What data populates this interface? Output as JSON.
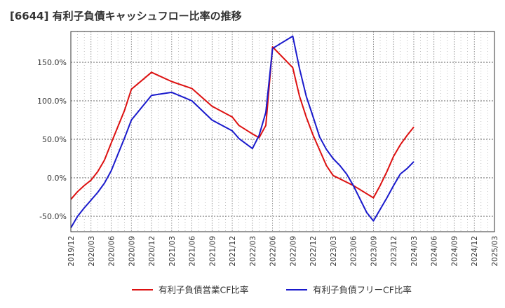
{
  "chart_data": {
    "type": "line",
    "title": "[6644]  有利子負債キャッシュフロー比率の推移",
    "xlabel": "",
    "ylabel": "",
    "ylim": [
      -70,
      190
    ],
    "yticks": [
      -50,
      0,
      50,
      100,
      150
    ],
    "ytick_labels": [
      "-50.0%",
      "0.0%",
      "50.0%",
      "100.0%",
      "150.0%"
    ],
    "x_tick_labels": [
      "2019/12",
      "2020/03",
      "2020/06",
      "2020/09",
      "2020/12",
      "2021/03",
      "2021/06",
      "2021/09",
      "2021/12",
      "2022/03",
      "2022/06",
      "2022/09",
      "2022/12",
      "2023/03",
      "2023/06",
      "2023/09",
      "2023/12",
      "2024/03",
      "2024/06",
      "2024/09",
      "2024/12",
      "2025/03"
    ],
    "grid": true,
    "legend_position": "bottom",
    "series": [
      {
        "name": "有利子負債営業CF比率",
        "color": "#dd1111",
        "x": [
          "2019/12",
          "2020/01",
          "2020/02",
          "2020/03",
          "2020/04",
          "2020/05",
          "2020/06",
          "2020/08",
          "2020/09",
          "2020/12",
          "2021/03",
          "2021/06",
          "2021/09",
          "2021/12",
          "2022/01",
          "2022/03",
          "2022/04",
          "2022/05",
          "2022/06",
          "2022/09",
          "2022/10",
          "2022/11",
          "2022/12",
          "2023/02",
          "2023/03",
          "2023/06",
          "2023/09",
          "2023/10",
          "2023/11",
          "2023/12",
          "2024/01",
          "2024/02",
          "2024/03"
        ],
        "values": [
          -28,
          -18,
          -10,
          -3,
          8,
          23,
          45,
          88,
          115,
          137,
          125,
          116,
          93,
          79,
          68,
          57,
          52,
          68,
          170,
          143,
          106,
          79,
          56,
          16,
          3,
          -10,
          -26,
          -10,
          8,
          28,
          43,
          55,
          66
        ]
      },
      {
        "name": "有利子負債フリーCF比率",
        "color": "#1a1acc",
        "x": [
          "2019/12",
          "2020/01",
          "2020/02",
          "2020/03",
          "2020/04",
          "2020/05",
          "2020/06",
          "2020/08",
          "2020/09",
          "2020/12",
          "2021/03",
          "2021/06",
          "2021/09",
          "2021/12",
          "2022/01",
          "2022/03",
          "2022/04",
          "2022/05",
          "2022/06",
          "2022/09",
          "2022/10",
          "2022/11",
          "2022/12",
          "2023/01",
          "2023/02",
          "2023/03",
          "2023/04",
          "2023/05",
          "2023/06",
          "2023/08",
          "2023/09",
          "2023/10",
          "2023/11",
          "2023/12",
          "2024/01",
          "2024/02",
          "2024/03"
        ],
        "values": [
          -65,
          -50,
          -39,
          -29,
          -19,
          -7,
          9,
          52,
          75,
          107,
          111,
          100,
          75,
          61,
          51,
          38,
          55,
          85,
          168,
          184,
          142,
          106,
          80,
          53,
          37,
          25,
          16,
          5,
          -10,
          -45,
          -56,
          -41,
          -26,
          -10,
          5,
          12,
          21
        ]
      }
    ]
  }
}
